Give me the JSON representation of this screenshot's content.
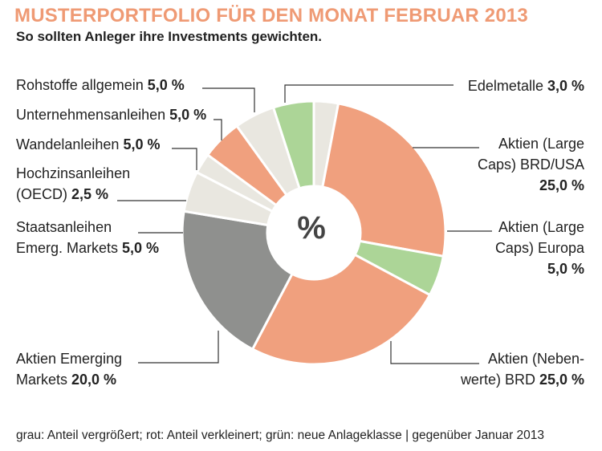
{
  "header": {
    "title": "MUSTERPORTFOLIO FÜR DEN MONAT FEBRUAR 2013",
    "subtitle": "So sollten Anleger ihre Investments gewichten."
  },
  "center_label": "%",
  "footer": "grau: Anteil vergrößert; rot: Anteil verkleinert; grün: neue Anlageklasse | gegenüber Januar 2013",
  "colors": {
    "red": "#f0a07e",
    "green": "#acd597",
    "beige": "#e9e7e0",
    "gray": "#8f908e",
    "leader": "#333333",
    "title": "#ef9a74"
  },
  "labels": {
    "edelmetalle": {
      "line1": "Edelmetalle ",
      "value": "3,0 %"
    },
    "large_usa": {
      "line1": "Aktien (Large",
      "line2": "Caps) BRD/USA",
      "value": "25,0 %"
    },
    "large_europa": {
      "line1": "Aktien (Large",
      "line2": "Caps) Europa",
      "value": "5,0 %"
    },
    "nebenwerte": {
      "line1": "Aktien (Neben-",
      "line2": "werte) BRD ",
      "value": "25,0 %"
    },
    "emerging_aktien": {
      "line1": "Aktien Emerging",
      "line2": "Markets ",
      "value": "20,0 %"
    },
    "staatsanleihen": {
      "line1": "Staatsanleihen",
      "line2": "Emerg. Markets ",
      "value": "5,0 %"
    },
    "hochzins": {
      "line1": "Hochzinsanleihen",
      "line2": "(OECD) ",
      "value": "2,5 %"
    },
    "wandelanleihen": {
      "line1": "Wandelanleihen ",
      "value": "5,0 %"
    },
    "unternehmensanleihen": {
      "line1": "Unternehmensanleihen ",
      "value": "5,0 %"
    },
    "rohstoffe": {
      "line1": "Rohstoffe allgemein ",
      "value": "5,0 %"
    }
  },
  "chart_data": {
    "type": "pie",
    "donut": true,
    "title": "MUSTERPORTFOLIO FÜR DEN MONAT FEBRUAR 2013",
    "subtitle": "So sollten Anleger ihre Investments gewichten.",
    "center_text": "%",
    "unit": "%",
    "start_angle_deg": 0,
    "direction": "clockwise from top",
    "slices": [
      {
        "key": "edelmetalle",
        "label": "Edelmetalle",
        "value": 3.0,
        "category": "unverändert"
      },
      {
        "key": "large_usa",
        "label": "Aktien (Large Caps) BRD/USA",
        "value": 25.0,
        "category": "rot"
      },
      {
        "key": "large_europa",
        "label": "Aktien (Large Caps) Europa",
        "value": 5.0,
        "category": "grün"
      },
      {
        "key": "nebenwerte",
        "label": "Aktien (Nebenwerte) BRD",
        "value": 25.0,
        "category": "rot"
      },
      {
        "key": "emerging_aktien",
        "label": "Aktien Emerging Markets",
        "value": 20.0,
        "category": "grau"
      },
      {
        "key": "staatsanleihen",
        "label": "Staatsanleihen Emerg. Markets",
        "value": 5.0,
        "category": "unverändert"
      },
      {
        "key": "hochzins",
        "label": "Hochzinsanleihen (OECD)",
        "value": 2.5,
        "category": "unverändert"
      },
      {
        "key": "wandelanleihen",
        "label": "Wandelanleihen",
        "value": 5.0,
        "category": "rot"
      },
      {
        "key": "unternehmensanleihen",
        "label": "Unternehmensanleihen",
        "value": 5.0,
        "category": "unverändert"
      },
      {
        "key": "rohstoffe",
        "label": "Rohstoffe allgemein",
        "value": 5.0,
        "category": "grün"
      }
    ],
    "legend_note": "grau: Anteil vergrößert; rot: Anteil verkleinert; grün: neue Anlageklasse | gegenüber Januar 2013"
  }
}
